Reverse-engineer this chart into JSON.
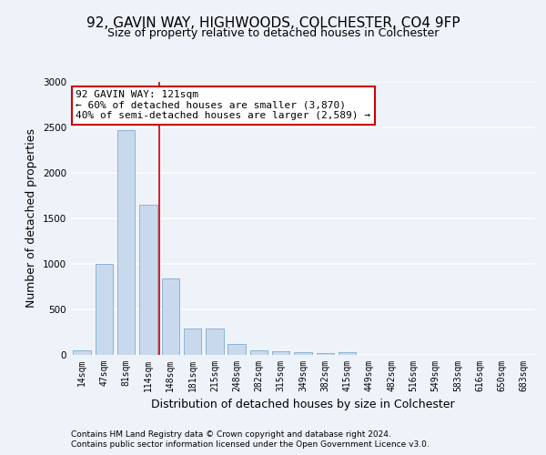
{
  "title1": "92, GAVIN WAY, HIGHWOODS, COLCHESTER, CO4 9FP",
  "title2": "Size of property relative to detached houses in Colchester",
  "xlabel": "Distribution of detached houses by size in Colchester",
  "ylabel": "Number of detached properties",
  "categories": [
    "14sqm",
    "47sqm",
    "81sqm",
    "114sqm",
    "148sqm",
    "181sqm",
    "215sqm",
    "248sqm",
    "282sqm",
    "315sqm",
    "349sqm",
    "382sqm",
    "415sqm",
    "449sqm",
    "482sqm",
    "516sqm",
    "549sqm",
    "583sqm",
    "616sqm",
    "650sqm",
    "683sqm"
  ],
  "values": [
    55,
    1000,
    2470,
    1650,
    840,
    295,
    290,
    120,
    50,
    45,
    35,
    25,
    30,
    0,
    0,
    0,
    0,
    0,
    0,
    0,
    0
  ],
  "bar_color": "#c9d9ed",
  "bar_edge_color": "#8ab4d4",
  "vline_color": "#cc0000",
  "vline_x_idx": 3,
  "annotation_text": "92 GAVIN WAY: 121sqm\n← 60% of detached houses are smaller (3,870)\n40% of semi-detached houses are larger (2,589) →",
  "annotation_box_color": "white",
  "annotation_box_edge_color": "#cc0000",
  "ylim": [
    0,
    3000
  ],
  "yticks": [
    0,
    500,
    1000,
    1500,
    2000,
    2500,
    3000
  ],
  "footnote1": "Contains HM Land Registry data © Crown copyright and database right 2024.",
  "footnote2": "Contains public sector information licensed under the Open Government Licence v3.0.",
  "bg_color": "#eef2f9",
  "plot_bg_color": "#eef2f9",
  "title1_fontsize": 11,
  "title2_fontsize": 9,
  "ylabel_fontsize": 9,
  "xlabel_fontsize": 9,
  "tick_fontsize": 7,
  "footnote_fontsize": 6.5
}
